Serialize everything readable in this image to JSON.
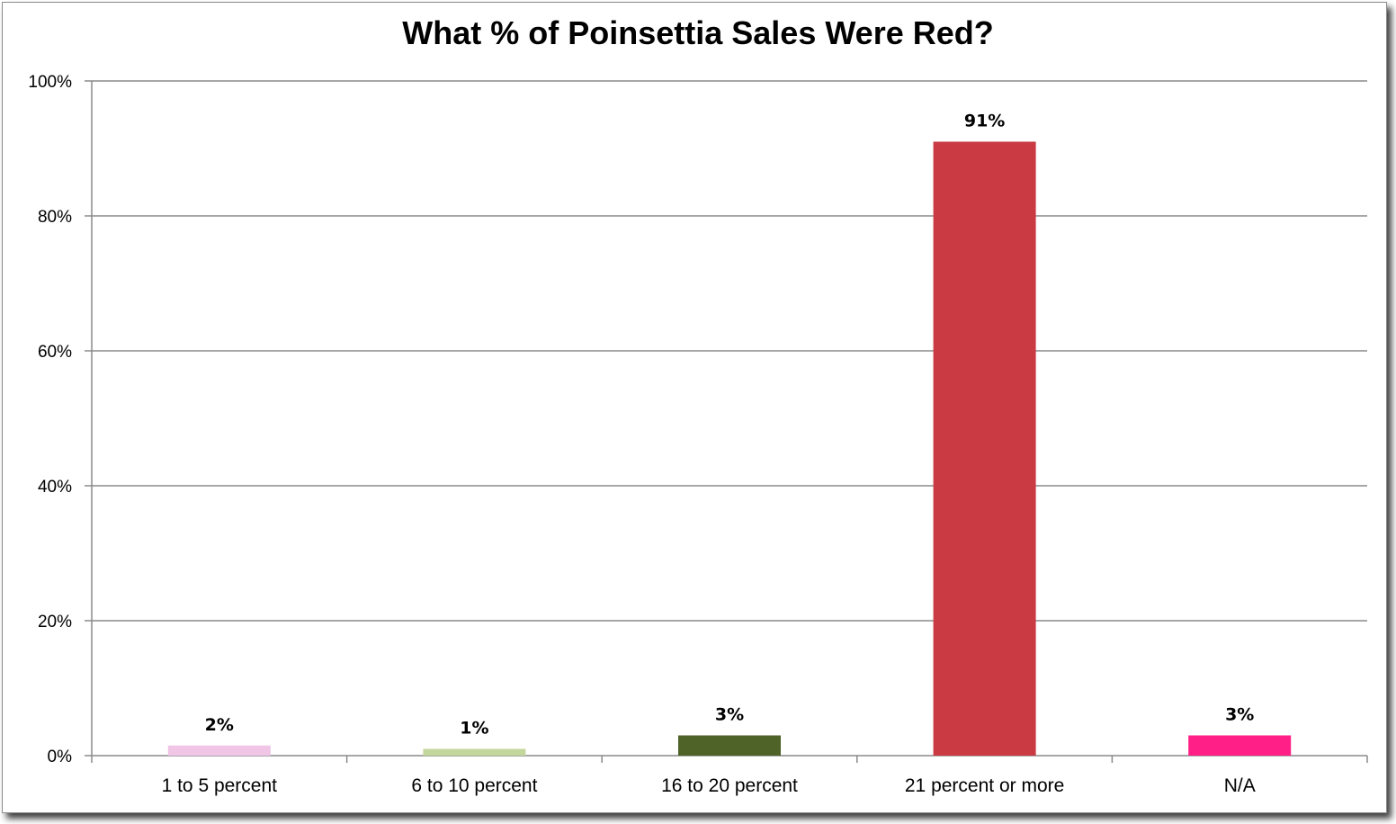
{
  "chart_data": {
    "type": "bar",
    "title": "What % of Poinsettia Sales Were Red?",
    "xlabel": "",
    "ylabel": "",
    "categories": [
      "1 to 5 percent",
      "6 to 10 percent",
      "16 to 20 percent",
      "21 percent or more",
      "N/A"
    ],
    "values": [
      1.5,
      1,
      3,
      91,
      3
    ],
    "data_labels": [
      "2%",
      "1%",
      "3%",
      "91%",
      "3%"
    ],
    "colors": [
      "#f0c5e6",
      "#c3d69b",
      "#4f6228",
      "#c93a42",
      "#ff1f87"
    ],
    "ylim": [
      0,
      100
    ],
    "yticks": [
      0,
      20,
      40,
      60,
      80,
      100
    ],
    "ytick_labels": [
      "0%",
      "20%",
      "40%",
      "60%",
      "80%",
      "100%"
    ],
    "grid": true,
    "legend": "none"
  }
}
